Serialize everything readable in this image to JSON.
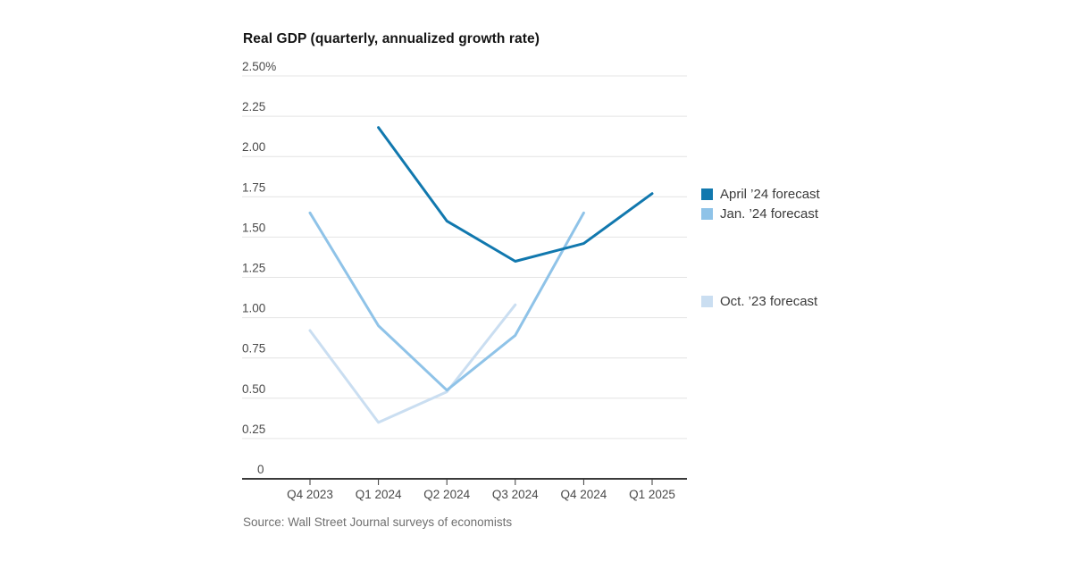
{
  "chart": {
    "title": "Real GDP (quarterly, annualized growth rate)",
    "source": "Source: Wall Street Journal surveys of economists"
  },
  "chart_data": {
    "type": "line",
    "title": "Real GDP (quarterly, annualized growth rate)",
    "categories": [
      "Q4 2023",
      "Q1 2024",
      "Q2 2024",
      "Q3 2024",
      "Q4 2024",
      "Q1 2025"
    ],
    "series": [
      {
        "name": "April ’24 forecast",
        "color": "#1178ae",
        "values": [
          null,
          2.18,
          1.6,
          1.35,
          1.46,
          1.77
        ]
      },
      {
        "name": "Jan. ’24 forecast",
        "color": "#8fc3e8",
        "values": [
          1.65,
          0.95,
          0.55,
          0.89,
          1.65,
          null
        ]
      },
      {
        "name": "Oct. ’23 forecast",
        "color": "#cadef1",
        "values": [
          0.92,
          0.35,
          0.54,
          1.08,
          null,
          null
        ]
      }
    ],
    "xlabel": "",
    "ylabel": "",
    "ylim": [
      0,
      2.5
    ],
    "y_tick_step": 0.25,
    "y_ticks": [
      {
        "value": 0,
        "label": "0"
      },
      {
        "value": 0.25,
        "label": "0.25"
      },
      {
        "value": 0.5,
        "label": "0.50"
      },
      {
        "value": 0.75,
        "label": "0.75"
      },
      {
        "value": 1,
        "label": "1.00"
      },
      {
        "value": 1.25,
        "label": "1.25"
      },
      {
        "value": 1.5,
        "label": "1.50"
      },
      {
        "value": 1.75,
        "label": "1.75"
      },
      {
        "value": 2,
        "label": "2.00"
      },
      {
        "value": 2.25,
        "label": "2.25"
      },
      {
        "value": 2.5,
        "label": "2.50%"
      }
    ],
    "grid": "horizontal",
    "legend_position": "right",
    "gridline_color": "#e4e4e4",
    "axis_color": "#3a3a3a",
    "tick_label_color": "#4a4a4a"
  }
}
